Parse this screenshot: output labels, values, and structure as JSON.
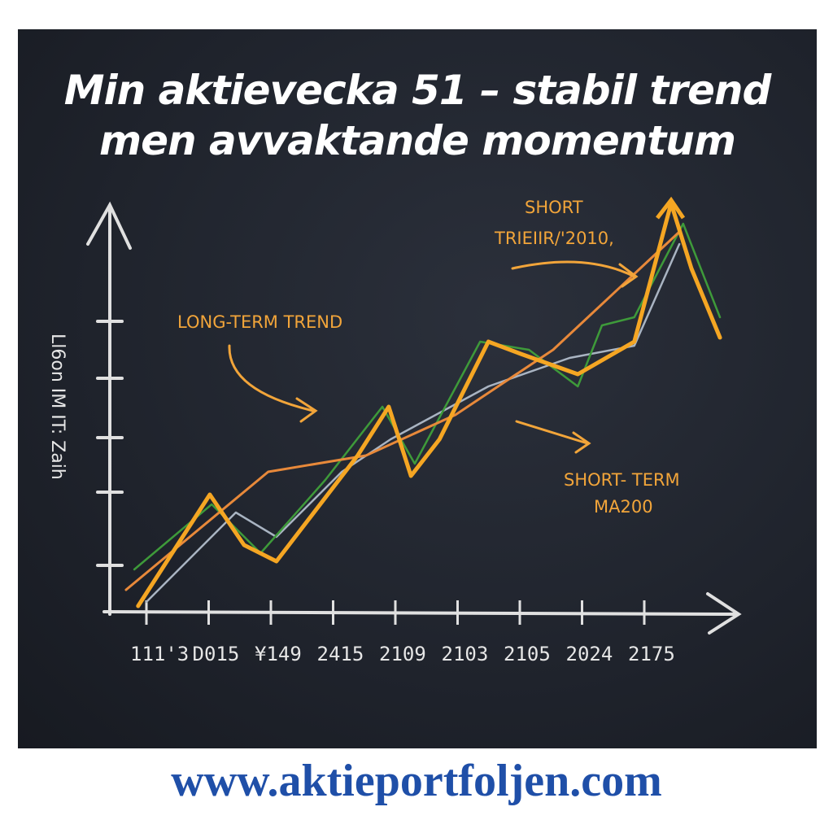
{
  "header": {
    "title_line1": "Min aktievecka 51 – stabil trend",
    "title_line2": "men avvaktande momentum"
  },
  "footer": {
    "url": "www.aktieportfoljen.com"
  },
  "colors": {
    "board": "#23272f",
    "chalk": "#e6e6e6",
    "orange": "#f5a623",
    "light_orange": "#e8893a",
    "green": "#3e9a3a",
    "gray": "#a9b4c2",
    "url": "#1f4fa8"
  },
  "chart_data": {
    "type": "line",
    "title": "",
    "ylabel": "Ll6on IM IT: Zaih",
    "xlabel": "",
    "xticks": [
      "111'3",
      "D015",
      "¥149",
      "2415",
      "2109",
      "2103",
      "2105",
      "2024",
      "2175"
    ],
    "xlim": [
      0,
      100
    ],
    "ylim": [
      0,
      100
    ],
    "grid": false,
    "annotations": [
      "LONG-TERM TREND",
      "SHORT",
      "TRIEIIR/'2010,",
      "SHORT- TERM",
      "MA200"
    ],
    "series": [
      {
        "color": "#f5a623",
        "x": [
          5.1,
          16.4,
          21.8,
          26.9,
          39.7,
          44.6,
          48.1,
          52.6,
          60.3,
          65.4,
          74.4,
          83.3,
          89.1,
          92.3,
          96.8
        ],
        "y": [
          0.6,
          28,
          15.6,
          11.6,
          37.6,
          49.6,
          32.6,
          41.6,
          65.6,
          62.6,
          57.6,
          65.6,
          99.6,
          83.6,
          66.6
        ]
      },
      {
        "color": "#e8893a",
        "x": [
          3.2,
          25.6,
          41,
          55.1,
          70.5,
          90.4
        ],
        "y": [
          4.6,
          33.6,
          37.6,
          47.6,
          63.6,
          92.6
        ]
      },
      {
        "color": "#3e9a3a",
        "x": [
          4.5,
          16.7,
          24.4,
          34.6,
          43.6,
          48.7,
          59,
          66.7,
          74.4,
          78.2,
          83.3,
          91,
          96.8
        ],
        "y": [
          9.6,
          25.6,
          13.6,
          31.6,
          49.6,
          35.6,
          65.6,
          63.6,
          54.6,
          69.6,
          71.6,
          94.6,
          71.6
        ]
      },
      {
        "color": "#a9b4c2",
        "x": [
          6.4,
          20.5,
          26.9,
          37.2,
          44.9,
          60.3,
          73.1,
          83.3,
          90.4
        ],
        "y": [
          1.6,
          23.6,
          17.6,
          33.6,
          41.6,
          54.6,
          61.6,
          64.6,
          89.6
        ]
      }
    ]
  }
}
